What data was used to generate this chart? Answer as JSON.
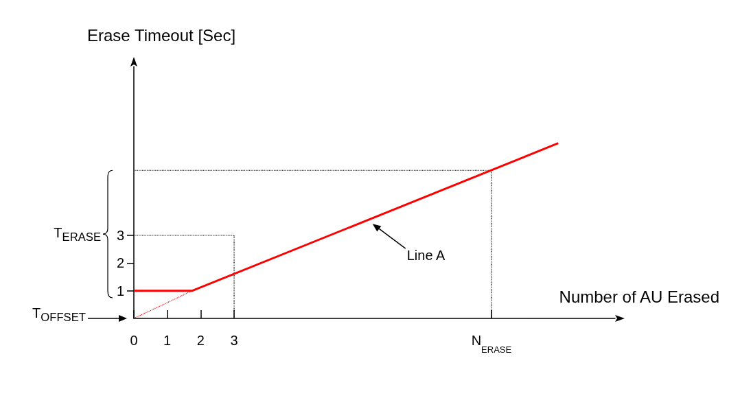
{
  "chart_data": {
    "type": "line",
    "xlabel": "Number of AU Erased",
    "ylabel": "Erase Timeout [Sec]",
    "xlim": [
      0,
      14.4
    ],
    "ylim": [
      0,
      9.1
    ],
    "xticks": [
      0,
      1,
      2,
      3,
      {
        "value": 10.7,
        "label": "N$_{ERASE}$"
      }
    ],
    "yticks": [
      1,
      2,
      3
    ],
    "grid": false,
    "marker": "none",
    "series": [
      {
        "color": "#ff0000",
        "line_style": "solid",
        "x": [
          0,
          1.75,
          12.7
        ],
        "values": [
          1,
          1,
          6.33
        ]
      },
      {
        "color": "#ff0000",
        "line_style": "dotted",
        "x": [
          0,
          1.75
        ],
        "values": [
          0,
          1
        ]
      },
      {
        "color": "#000000",
        "line_style": "dotted",
        "x": [
          0,
          3,
          3
        ],
        "values": [
          3,
          3,
          0
        ]
      },
      {
        "color": "#000000",
        "line_style": "dotted",
        "x": [
          0,
          10.7,
          10.7
        ],
        "values": [
          5.35,
          5.35,
          0
        ]
      }
    ],
    "annotations": [
      "T$_{ERASE}$",
      "T$_{OFFSET}$",
      "Line A"
    ]
  }
}
